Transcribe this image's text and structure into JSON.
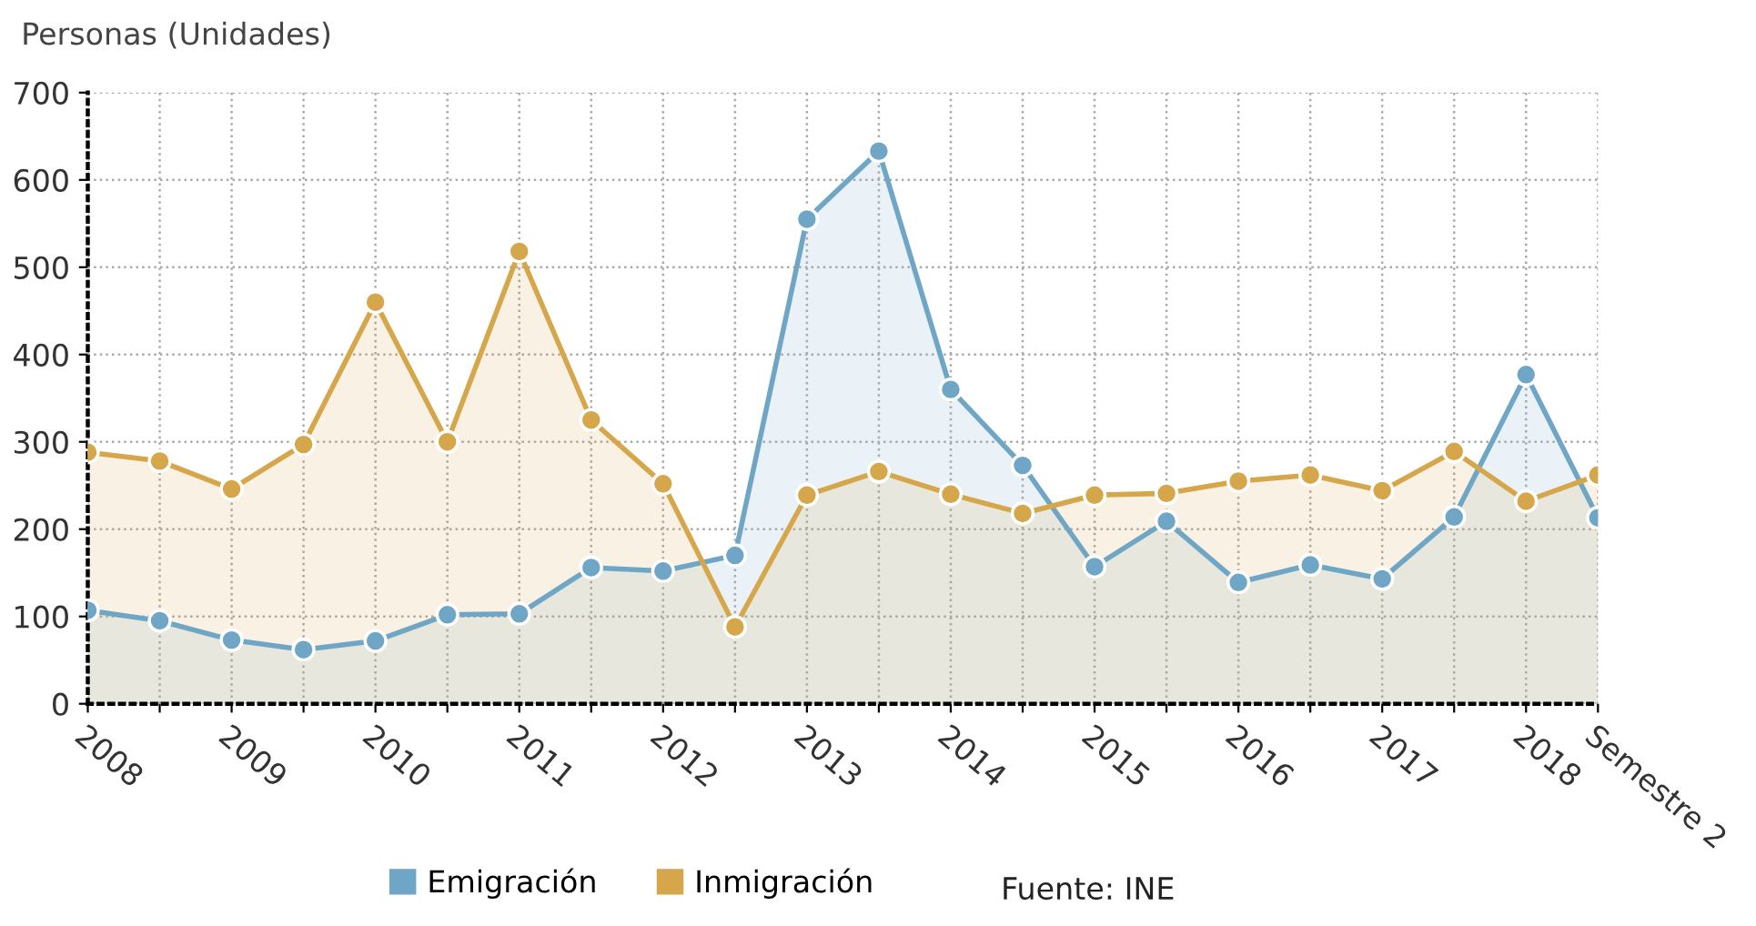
{
  "chart_data": {
    "type": "area",
    "ylabel": "Personas (Unidades)",
    "categories": [
      "2008",
      null,
      "2009",
      null,
      "2010",
      null,
      "2011",
      null,
      "2012",
      null,
      "2013",
      null,
      "2014",
      null,
      "2015",
      null,
      "2016",
      null,
      "2017",
      null,
      "2018",
      "Semestre 2"
    ],
    "series": [
      {
        "name": "Emigración",
        "color": "#6fa6c6",
        "values": [
          107,
          95,
          73,
          62,
          72,
          102,
          103,
          156,
          152,
          170,
          555,
          633,
          360,
          273,
          157,
          209,
          139,
          159,
          143,
          214,
          377,
          213
        ]
      },
      {
        "name": "Inmigración",
        "color": "#d5a64a",
        "values": [
          288,
          278,
          246,
          297,
          460,
          300,
          518,
          325,
          252,
          88,
          239,
          266,
          240,
          218,
          239,
          241,
          255,
          262,
          244,
          289,
          232,
          262
        ]
      }
    ],
    "ylim": [
      0,
      700
    ],
    "yticks": [
      0,
      100,
      200,
      300,
      400,
      500,
      600,
      700
    ],
    "grid": true,
    "legend": "bottom",
    "marker": "circle",
    "line_style": "solid",
    "annotations": [
      "Fuente: INE"
    ]
  }
}
